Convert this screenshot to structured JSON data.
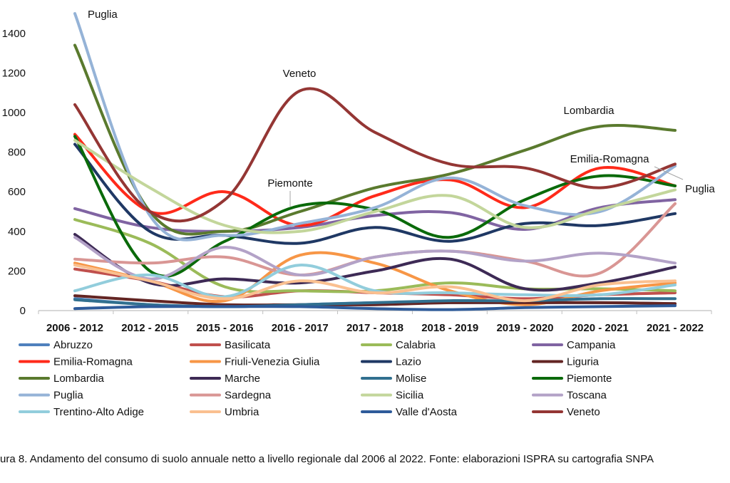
{
  "chart_data": {
    "type": "line",
    "categories": [
      "2006 - 2012",
      "2012 - 2015",
      "2015 - 2016",
      "2016 - 2017",
      "2017 - 2018",
      "2018 - 2019",
      "2019 - 2020",
      "2020 - 2021",
      "2021 - 2022"
    ],
    "ylim": [
      0,
      1500
    ],
    "yticks": [
      0,
      200,
      400,
      600,
      800,
      1000,
      1200,
      1400
    ],
    "grid": false,
    "legend_position": "bottom",
    "series": [
      {
        "name": "Abruzzo",
        "color": "#4f81bd",
        "values": [
          60,
          30,
          20,
          30,
          40,
          40,
          40,
          40,
          35
        ]
      },
      {
        "name": "Basilicata",
        "color": "#c0504d",
        "values": [
          210,
          150,
          70,
          100,
          90,
          80,
          60,
          80,
          90
        ]
      },
      {
        "name": "Calabria",
        "color": "#9bbb59",
        "values": [
          460,
          340,
          120,
          100,
          100,
          140,
          110,
          110,
          100
        ]
      },
      {
        "name": "Campania",
        "color": "#8064a2",
        "values": [
          515,
          420,
          400,
          420,
          480,
          495,
          410,
          520,
          560
        ]
      },
      {
        "name": "Emilia-Romagna",
        "color": "#ff2a1a",
        "values": [
          890,
          500,
          600,
          430,
          580,
          660,
          520,
          720,
          630
        ]
      },
      {
        "name": "Friuli-Venezia Giulia",
        "color": "#f79646",
        "values": [
          240,
          150,
          50,
          280,
          240,
          100,
          30,
          100,
          140
        ]
      },
      {
        "name": "Lazio",
        "color": "#1f3864",
        "values": [
          840,
          400,
          380,
          340,
          420,
          350,
          440,
          430,
          490
        ]
      },
      {
        "name": "Liguria",
        "color": "#632523",
        "values": [
          75,
          50,
          30,
          30,
          30,
          40,
          40,
          40,
          35
        ]
      },
      {
        "name": "Lombardia",
        "color": "#5a7a2e",
        "values": [
          1340,
          500,
          400,
          500,
          620,
          690,
          810,
          930,
          910
        ]
      },
      {
        "name": "Marche",
        "color": "#3d2a55",
        "values": [
          385,
          140,
          160,
          140,
          200,
          260,
          110,
          140,
          220
        ]
      },
      {
        "name": "Molise",
        "color": "#31708f",
        "values": [
          55,
          30,
          20,
          30,
          40,
          50,
          50,
          60,
          60
        ]
      },
      {
        "name": "Piemonte",
        "color": "#0a6a0a",
        "values": [
          880,
          200,
          350,
          530,
          510,
          370,
          560,
          680,
          630
        ]
      },
      {
        "name": "Puglia",
        "color": "#95b3d7",
        "values": [
          1500,
          480,
          380,
          440,
          520,
          670,
          530,
          500,
          730
        ]
      },
      {
        "name": "Sardegna",
        "color": "#d99694",
        "values": [
          260,
          240,
          270,
          180,
          270,
          300,
          250,
          190,
          540
        ]
      },
      {
        "name": "Sicilia",
        "color": "#c3d69b",
        "values": [
          860,
          620,
          430,
          400,
          500,
          580,
          420,
          510,
          610
        ]
      },
      {
        "name": "Toscana",
        "color": "#b3a2c7",
        "values": [
          370,
          160,
          320,
          180,
          270,
          300,
          250,
          290,
          240
        ]
      },
      {
        "name": "Trentino-Alto Adige",
        "color": "#92cddc",
        "values": [
          100,
          180,
          70,
          230,
          100,
          90,
          80,
          80,
          130
        ]
      },
      {
        "name": "Umbria",
        "color": "#fac090",
        "values": [
          230,
          150,
          60,
          150,
          90,
          120,
          50,
          130,
          150
        ]
      },
      {
        "name": "Valle d'Aosta",
        "color": "#2e5b9a",
        "values": [
          10,
          20,
          20,
          20,
          10,
          5,
          15,
          20,
          25
        ]
      },
      {
        "name": "Veneto",
        "color": "#943634",
        "values": [
          1040,
          500,
          560,
          1110,
          900,
          740,
          720,
          620,
          740
        ]
      }
    ],
    "annotations": [
      "Puglia",
      "Veneto",
      "Lombardia",
      "Emilia-Romagna",
      "Piemonte",
      "Puglia"
    ]
  },
  "caption": "ura 8. Andamento del consumo di suolo annuale netto a livello regionale dal 2006 al 2022. Fonte: elaborazioni ISPRA su cartografia SNPA"
}
